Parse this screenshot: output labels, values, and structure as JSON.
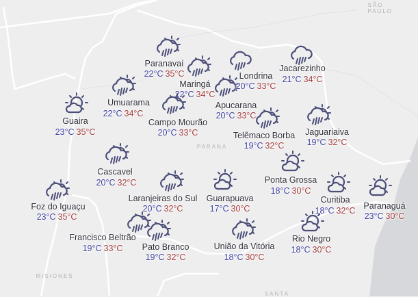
{
  "map": {
    "regions": [
      "SÃO PAULO",
      "PARANÁ",
      "MISIONES",
      "SANTA"
    ],
    "colors": {
      "icon": "#4a4e78",
      "min_temp": "#3d3f9e",
      "max_temp": "#a23b3b",
      "land": "#eeeeef",
      "sea": "#d6d8db"
    },
    "cities": [
      {
        "name": "Paranavaí",
        "min": "22°C",
        "max": "35°C",
        "icon": "rain-sun-icon"
      },
      {
        "name": "Maringá",
        "min": "22°C",
        "max": "34°C",
        "icon": "rain-sun-icon"
      },
      {
        "name": "Apucarana",
        "min": "20°C",
        "max": "33°C",
        "icon": "rain-sun-icon"
      },
      {
        "name": "Londrina",
        "min": "20°C",
        "max": "33°C",
        "icon": "rain-cloud-icon"
      },
      {
        "name": "Jacarezinho",
        "min": "21°C",
        "max": "34°C",
        "icon": "rain-cloud-icon"
      },
      {
        "name": "Umuarama",
        "min": "22°C",
        "max": "34°C",
        "icon": "rain-sun-icon"
      },
      {
        "name": "Guaira",
        "min": "23°C",
        "max": "35°C",
        "icon": "partly-cloudy-icon"
      },
      {
        "name": "Campo Mourão",
        "min": "20°C",
        "max": "33°C",
        "icon": "rain-sun-icon"
      },
      {
        "name": "Telêmaco Borba",
        "min": "19°C",
        "max": "32°C",
        "icon": "rain-sun-icon"
      },
      {
        "name": "Jaguariaiva",
        "min": "19°C",
        "max": "32°C",
        "icon": "rain-sun-icon"
      },
      {
        "name": "Cascavel",
        "min": "20°C",
        "max": "32°C",
        "icon": "rain-sun-icon"
      },
      {
        "name": "Laranjeiras do Sul",
        "min": "20°C",
        "max": "32°C",
        "icon": "rain-sun-icon"
      },
      {
        "name": "Guarapuava",
        "min": "17°C",
        "max": "30°C",
        "icon": "partly-cloudy-icon"
      },
      {
        "name": "Ponta Grossa",
        "min": "18°C",
        "max": "30°C",
        "icon": "partly-cloudy-icon"
      },
      {
        "name": "Curitiba",
        "min": "18°C",
        "max": "32°C",
        "icon": "partly-cloudy-icon"
      },
      {
        "name": "Paranaguá",
        "min": "23°C",
        "max": "30°C",
        "icon": "partly-cloudy-icon"
      },
      {
        "name": "Foz do Iguaçu",
        "min": "23°C",
        "max": "35°C",
        "icon": "rain-sun-icon"
      },
      {
        "name": "Francisco Beltrão",
        "min": "19°C",
        "max": "33°C",
        "icon": "rain-sun-icon"
      },
      {
        "name": "Pato Branco",
        "min": "19°C",
        "max": "32°C",
        "icon": "rain-sun-icon"
      },
      {
        "name": "União da Vitória",
        "min": "18°C",
        "max": "30°C",
        "icon": "rain-sun-icon"
      },
      {
        "name": "Rio Negro",
        "min": "18°C",
        "max": "30°C",
        "icon": "partly-cloudy-icon"
      }
    ]
  }
}
